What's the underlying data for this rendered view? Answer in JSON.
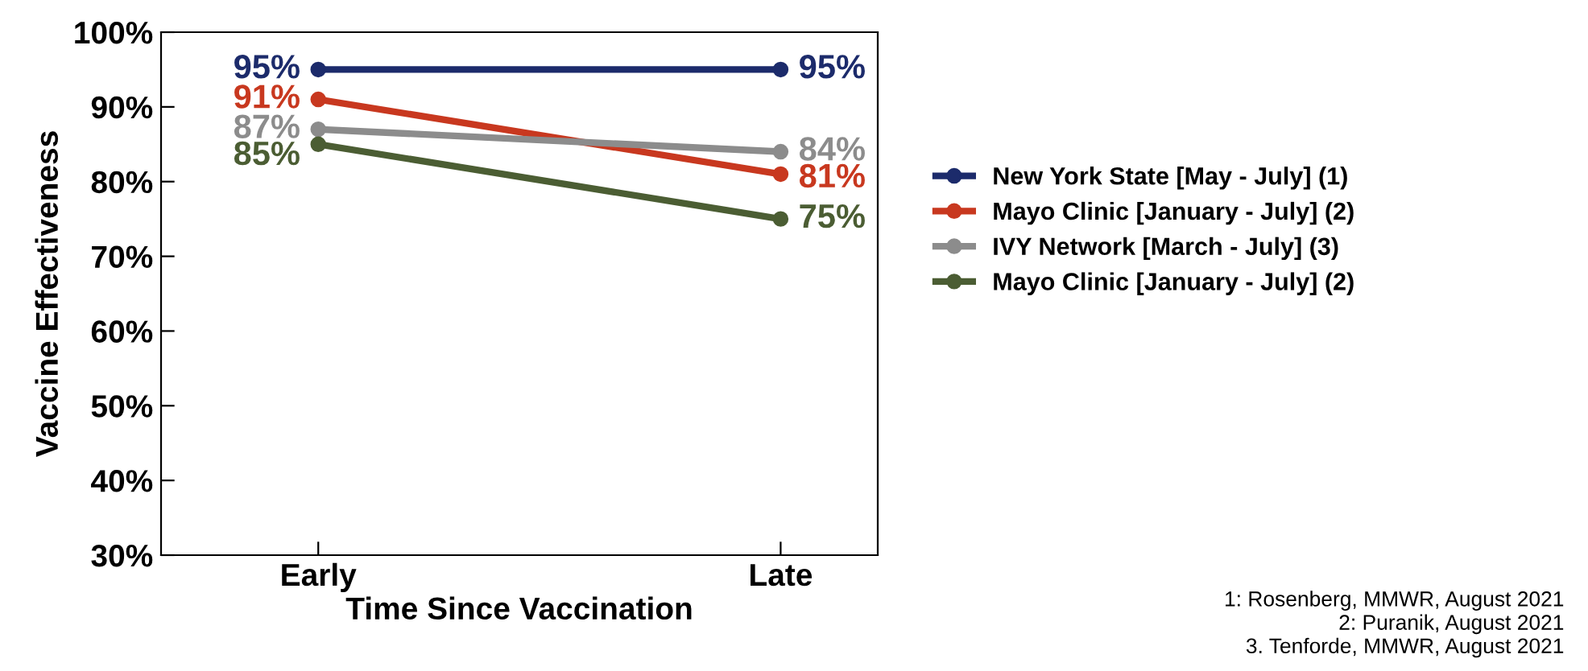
{
  "chart_data": {
    "type": "line",
    "xlabel": "Time Since Vaccination",
    "ylabel": "Vaccine Effectiveness",
    "categories": [
      "Early",
      "Late"
    ],
    "series": [
      {
        "name": "New York State [May - July] (1)",
        "color": "#1c2b6b",
        "values": [
          95,
          95
        ],
        "value_labels": [
          "95%",
          "95%"
        ]
      },
      {
        "name": "Mayo Clinic [January - July] (2)",
        "color": "#c8381f",
        "values": [
          91,
          81
        ],
        "value_labels": [
          "91%",
          "81%"
        ]
      },
      {
        "name": "IVY Network [March - July] (3)",
        "color": "#8c8c8c",
        "values": [
          87,
          84
        ],
        "value_labels": [
          "87%",
          "84%"
        ]
      },
      {
        "name": "Mayo Clinic [January - July] (2)",
        "color": "#4b5d33",
        "values": [
          85,
          75
        ],
        "value_labels": [
          "85%",
          "75%"
        ]
      }
    ],
    "ylim": [
      30,
      100
    ],
    "yticks": [
      {
        "value": 30,
        "label": "30%"
      },
      {
        "value": 40,
        "label": "40%"
      },
      {
        "value": 50,
        "label": "50%"
      },
      {
        "value": 60,
        "label": "60%"
      },
      {
        "value": 70,
        "label": "70%"
      },
      {
        "value": 80,
        "label": "80%"
      },
      {
        "value": 90,
        "label": "90%"
      },
      {
        "value": 100,
        "label": "100%"
      }
    ],
    "marker": "circle",
    "line_style": "solid",
    "legend": "right",
    "grid": false,
    "annotations": [
      "1: Rosenberg, MMWR, August 2021",
      "2: Puranik, August 2021",
      "3. Tenforde, MMWR, August 2021"
    ]
  }
}
